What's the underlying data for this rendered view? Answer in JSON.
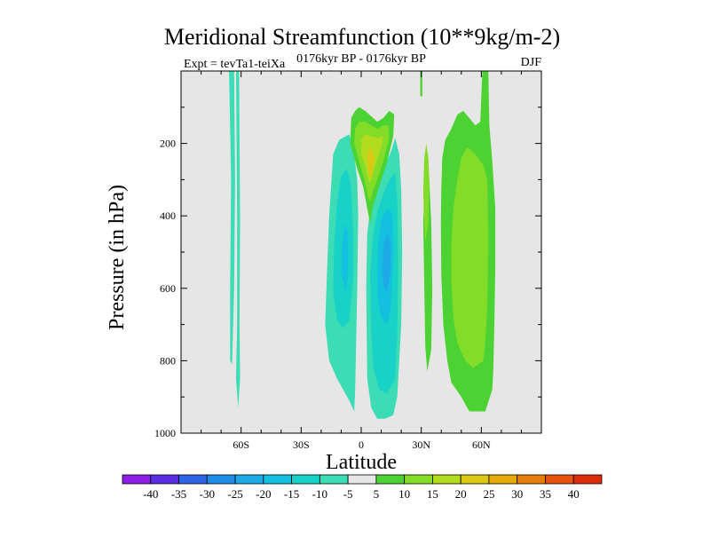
{
  "chart_data": {
    "type": "contour",
    "title": "Meridional Streamfunction (10**9kg/m-2)",
    "left_label": "Expt = tevTa1-teiXa",
    "center_label": "0176kyr BP - 0176kyr BP",
    "right_label": "DJF",
    "xlabel": "Latitude",
    "ylabel": "Pressure (in hPa)",
    "xlim": [
      -90,
      90
    ],
    "ylim": [
      1000,
      0
    ],
    "xticks": [
      {
        "value": -60,
        "label": "60S"
      },
      {
        "value": -30,
        "label": "30S"
      },
      {
        "value": 0,
        "label": "0"
      },
      {
        "value": 30,
        "label": "30N"
      },
      {
        "value": 60,
        "label": "60N"
      }
    ],
    "yticks": [
      {
        "value": 200,
        "label": "200"
      },
      {
        "value": 400,
        "label": "400"
      },
      {
        "value": 600,
        "label": "600"
      },
      {
        "value": 800,
        "label": "800"
      },
      {
        "value": 1000,
        "label": "1000"
      }
    ],
    "background_color": "#e6e6e6",
    "colorbar": {
      "levels": [
        -40,
        -35,
        -30,
        -25,
        -20,
        -15,
        -10,
        -5,
        5,
        10,
        15,
        20,
        25,
        30,
        35,
        40
      ],
      "colors": [
        "#8c1ee6",
        "#5a2ee0",
        "#2e64e6",
        "#1e8ce6",
        "#1eaae6",
        "#14c0e0",
        "#18d2c8",
        "#3cdcb4",
        "#e6e6e6",
        "#4cd232",
        "#82dc28",
        "#b4dc1e",
        "#dcc814",
        "#e6aa0a",
        "#e67d0a",
        "#e6500a",
        "#dc2d0a"
      ]
    },
    "regions": [
      {
        "name": "sh-high-lat-strip-1",
        "value": -7,
        "points": [
          [
            -66,
            0
          ],
          [
            -65,
            300
          ],
          [
            -65.5,
            600
          ],
          [
            -65.5,
            800
          ],
          [
            -64.5,
            810
          ],
          [
            -63.5,
            600
          ],
          [
            -63,
            300
          ],
          [
            -63.5,
            0
          ]
        ]
      },
      {
        "name": "sh-high-lat-strip-2",
        "value": -7,
        "points": [
          [
            -62.5,
            0
          ],
          [
            -62,
            400
          ],
          [
            -62,
            700
          ],
          [
            -62.5,
            850
          ],
          [
            -61.5,
            930
          ],
          [
            -60.5,
            850
          ],
          [
            -60.8,
            700
          ],
          [
            -60.5,
            400
          ],
          [
            -61,
            0
          ]
        ]
      },
      {
        "name": "nh-strip-top",
        "value": 7,
        "points": [
          [
            29.5,
            0
          ],
          [
            30.5,
            0
          ],
          [
            30.5,
            70
          ],
          [
            29.5,
            70
          ]
        ]
      },
      {
        "name": "sh-cell-outer",
        "value": -7,
        "points": [
          [
            -18,
            700
          ],
          [
            -17,
            540
          ],
          [
            -16,
            400
          ],
          [
            -14,
            230
          ],
          [
            -11,
            190
          ],
          [
            -6,
            175
          ],
          [
            -4,
            210
          ],
          [
            -2,
            300
          ],
          [
            -1.5,
            400
          ],
          [
            -2,
            600
          ],
          [
            -3,
            880
          ],
          [
            -3.5,
            940
          ],
          [
            -6,
            910
          ],
          [
            -9,
            880
          ],
          [
            -12,
            850
          ],
          [
            -16,
            800
          ]
        ]
      },
      {
        "name": "sh-cell-10",
        "value": -12,
        "points": [
          [
            -14,
            610
          ],
          [
            -13.5,
            480
          ],
          [
            -12,
            360
          ],
          [
            -10,
            290
          ],
          [
            -7,
            270
          ],
          [
            -5,
            320
          ],
          [
            -4,
            440
          ],
          [
            -4,
            580
          ],
          [
            -6,
            690
          ],
          [
            -9,
            710
          ],
          [
            -12,
            690
          ]
        ]
      },
      {
        "name": "sh-cell-15",
        "value": -17,
        "points": [
          [
            -10,
            560
          ],
          [
            -9.5,
            470
          ],
          [
            -8,
            420
          ],
          [
            -6.5,
            450
          ],
          [
            -6.5,
            560
          ],
          [
            -7.5,
            610
          ]
        ]
      },
      {
        "name": "eq-cell-outer",
        "value": -7,
        "points": [
          [
            3,
            850
          ],
          [
            2.5,
            600
          ],
          [
            3,
            450
          ],
          [
            4.5,
            380
          ],
          [
            6,
            340
          ],
          [
            9,
            300
          ],
          [
            12,
            260
          ],
          [
            15,
            220
          ],
          [
            17,
            185
          ],
          [
            19,
            230
          ],
          [
            20,
            330
          ],
          [
            20.5,
            500
          ],
          [
            20,
            700
          ],
          [
            18,
            900
          ],
          [
            16,
            950
          ],
          [
            12,
            960
          ],
          [
            8,
            960
          ],
          [
            5,
            930
          ]
        ]
      },
      {
        "name": "eq-cell-10",
        "value": -12,
        "points": [
          [
            5,
            720
          ],
          [
            4.5,
            560
          ],
          [
            6,
            450
          ],
          [
            8,
            390
          ],
          [
            11,
            340
          ],
          [
            14,
            300
          ],
          [
            17,
            280
          ],
          [
            18,
            360
          ],
          [
            18.5,
            550
          ],
          [
            18,
            720
          ],
          [
            17,
            850
          ],
          [
            13,
            890
          ],
          [
            9,
            880
          ],
          [
            6,
            820
          ]
        ]
      },
      {
        "name": "eq-cell-15",
        "value": -17,
        "points": [
          [
            8,
            560
          ],
          [
            8.5,
            470
          ],
          [
            10,
            410
          ],
          [
            13,
            380
          ],
          [
            15.5,
            390
          ],
          [
            16,
            500
          ],
          [
            15,
            650
          ],
          [
            13,
            700
          ],
          [
            10,
            680
          ],
          [
            8.5,
            640
          ]
        ]
      },
      {
        "name": "eq-cell-20",
        "value": -22,
        "points": [
          [
            10.5,
            560
          ],
          [
            11,
            480
          ],
          [
            13,
            450
          ],
          [
            14.5,
            470
          ],
          [
            14.5,
            560
          ],
          [
            13,
            610
          ],
          [
            11.5,
            600
          ]
        ]
      },
      {
        "name": "nh-narrow-pos",
        "value": 7,
        "points": [
          [
            32,
            300
          ],
          [
            31.5,
            330
          ],
          [
            31,
            420
          ],
          [
            31.5,
            600
          ],
          [
            32,
            760
          ],
          [
            33,
            830
          ],
          [
            35,
            770
          ],
          [
            35.5,
            600
          ],
          [
            35,
            420
          ],
          [
            34,
            300
          ],
          [
            33,
            260
          ]
        ]
      },
      {
        "name": "nh-narrow-pos-10",
        "value": 12,
        "points": [
          [
            31.5,
            240
          ],
          [
            31,
            330
          ],
          [
            31.5,
            430
          ],
          [
            32,
            470
          ],
          [
            33.5,
            420
          ],
          [
            34,
            300
          ],
          [
            33.5,
            240
          ],
          [
            32.5,
            200
          ]
        ]
      },
      {
        "name": "nh-ferrel-outer",
        "value": 7,
        "points": [
          [
            40,
            330
          ],
          [
            40.5,
            240
          ],
          [
            42,
            190
          ],
          [
            45,
            160
          ],
          [
            48,
            120
          ],
          [
            51,
            110
          ],
          [
            54,
            130
          ],
          [
            57,
            150
          ],
          [
            59.5,
            140
          ],
          [
            60.5,
            0
          ],
          [
            63.5,
            0
          ],
          [
            64,
            150
          ],
          [
            65.5,
            250
          ],
          [
            67,
            380
          ],
          [
            67,
            540
          ],
          [
            66.5,
            700
          ],
          [
            66,
            820
          ],
          [
            65.5,
            880
          ],
          [
            62,
            940
          ],
          [
            58,
            940
          ],
          [
            54,
            940
          ],
          [
            50,
            900
          ],
          [
            45,
            860
          ],
          [
            43,
            800
          ],
          [
            41,
            700
          ],
          [
            40,
            560
          ],
          [
            39.8,
            420
          ]
        ]
      },
      {
        "name": "nh-ferrel-10",
        "value": 12,
        "points": [
          [
            45,
            580
          ],
          [
            45,
            480
          ],
          [
            46,
            380
          ],
          [
            48,
            300
          ],
          [
            50,
            240
          ],
          [
            53,
            210
          ],
          [
            57,
            230
          ],
          [
            61,
            260
          ],
          [
            63,
            300
          ],
          [
            63.5,
            460
          ],
          [
            63,
            650
          ],
          [
            62,
            750
          ],
          [
            61,
            800
          ],
          [
            56,
            820
          ],
          [
            52,
            800
          ],
          [
            48,
            750
          ],
          [
            46,
            680
          ]
        ]
      },
      {
        "name": "eq-positive-cap-5",
        "value": 7,
        "points": [
          [
            -5,
            130
          ],
          [
            -5.5,
            200
          ],
          [
            -2,
            270
          ],
          [
            1,
            320
          ],
          [
            3,
            380
          ],
          [
            4.5,
            420
          ],
          [
            6,
            370
          ],
          [
            9,
            320
          ],
          [
            13,
            250
          ],
          [
            16,
            180
          ],
          [
            16.5,
            120
          ],
          [
            14,
            110
          ],
          [
            11,
            130
          ],
          [
            8,
            140
          ],
          [
            5,
            125
          ],
          [
            2,
            110
          ],
          [
            -1,
            100
          ],
          [
            -3,
            110
          ]
        ]
      },
      {
        "name": "eq-positive-cap-10",
        "value": 12,
        "points": [
          [
            -3,
            160
          ],
          [
            -3.5,
            200
          ],
          [
            -1,
            250
          ],
          [
            1.5,
            300
          ],
          [
            3.5,
            350
          ],
          [
            4.5,
            360
          ],
          [
            6,
            330
          ],
          [
            8,
            300
          ],
          [
            11,
            250
          ],
          [
            14,
            185
          ],
          [
            13.5,
            150
          ],
          [
            11,
            150
          ],
          [
            8,
            160
          ],
          [
            5,
            150
          ],
          [
            2,
            140
          ],
          [
            -1,
            140
          ]
        ]
      },
      {
        "name": "eq-positive-cap-15",
        "value": 17,
        "points": [
          [
            0,
            190
          ],
          [
            0,
            230
          ],
          [
            2,
            260
          ],
          [
            4,
            310
          ],
          [
            5,
            300
          ],
          [
            7,
            260
          ],
          [
            10,
            210
          ],
          [
            11,
            180
          ],
          [
            8,
            185
          ],
          [
            5,
            180
          ],
          [
            2,
            175
          ]
        ]
      },
      {
        "name": "eq-positive-cap-20",
        "value": 22,
        "points": [
          [
            3,
            230
          ],
          [
            3.5,
            270
          ],
          [
            4.5,
            300
          ],
          [
            5.5,
            280
          ],
          [
            6.5,
            240
          ],
          [
            5,
            215
          ],
          [
            4,
            215
          ]
        ]
      }
    ]
  }
}
